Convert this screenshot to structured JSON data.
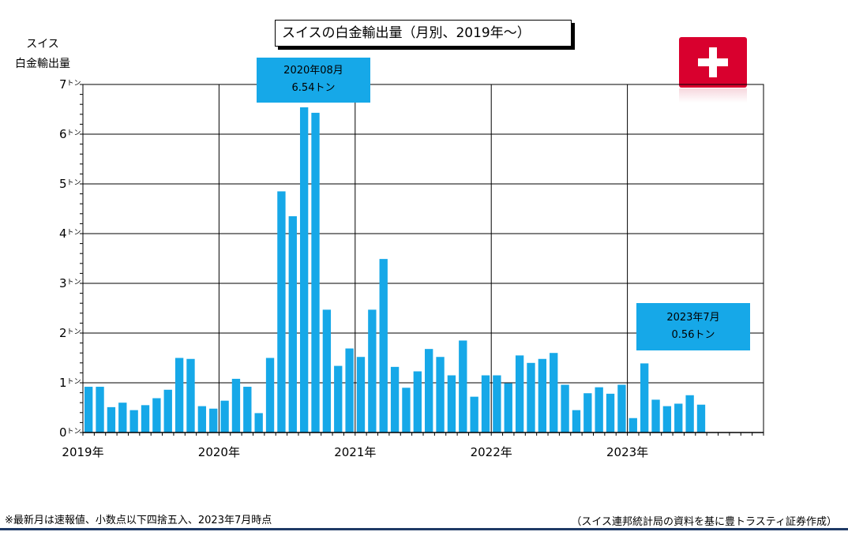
{
  "title": "スイスの白金輸出量（月別、2019年～）",
  "ylabel_lines": [
    "スイス",
    "白金輸出量"
  ],
  "footnote": "※最新月は速報値、小数点以下四捨五入、2023年7月時点",
  "source": "（スイス連邦統計局の資料を基に豊トラスティ証券作成）",
  "colors": {
    "bar": "#16a8e8",
    "flag": "#d9002e",
    "rule": "#1f3a66"
  },
  "icons": {
    "flag": "swiss-flag-icon"
  },
  "callouts": [
    {
      "line1": "2020年08月",
      "line2": "6.54トン"
    },
    {
      "line1": "2023年7月",
      "line2": "0.56トン"
    }
  ],
  "chart_data": {
    "type": "bar",
    "title": "スイスの白金輸出量（月別、2019年～）",
    "ylabel": "スイス 白金輸出量",
    "unit": "トン",
    "ylim": [
      0,
      7
    ],
    "yticks": [
      {
        "value": 0,
        "label": "0"
      },
      {
        "value": 1,
        "label": "1"
      },
      {
        "value": 2,
        "label": "2"
      },
      {
        "value": 3,
        "label": "3"
      },
      {
        "value": 4,
        "label": "4"
      },
      {
        "value": 5,
        "label": "5"
      },
      {
        "value": 6,
        "label": "6"
      },
      {
        "value": 7,
        "label": "7"
      }
    ],
    "ytick_unit": "トン",
    "year_labels": [
      "2019年",
      "2020年",
      "2021年",
      "2022年",
      "2023年"
    ],
    "grid": true,
    "months_total": 60,
    "categories": [
      "2019-01",
      "2019-02",
      "2019-03",
      "2019-04",
      "2019-05",
      "2019-06",
      "2019-07",
      "2019-08",
      "2019-09",
      "2019-10",
      "2019-11",
      "2019-12",
      "2020-01",
      "2020-02",
      "2020-03",
      "2020-04",
      "2020-05",
      "2020-06",
      "2020-07",
      "2020-08",
      "2020-09",
      "2020-10",
      "2020-11",
      "2020-12",
      "2021-01",
      "2021-02",
      "2021-03",
      "2021-04",
      "2021-05",
      "2021-06",
      "2021-07",
      "2021-08",
      "2021-09",
      "2021-10",
      "2021-11",
      "2021-12",
      "2022-01",
      "2022-02",
      "2022-03",
      "2022-04",
      "2022-05",
      "2022-06",
      "2022-07",
      "2022-08",
      "2022-09",
      "2022-10",
      "2022-11",
      "2022-12",
      "2023-01",
      "2023-02",
      "2023-03",
      "2023-04",
      "2023-05",
      "2023-06",
      "2023-07"
    ],
    "values": [
      0.92,
      0.92,
      0.51,
      0.6,
      0.45,
      0.55,
      0.69,
      0.86,
      1.5,
      1.48,
      0.53,
      0.48,
      0.64,
      1.08,
      0.92,
      0.39,
      1.5,
      4.85,
      4.35,
      6.54,
      6.43,
      2.47,
      1.34,
      1.69,
      1.52,
      2.47,
      3.49,
      1.32,
      0.9,
      1.23,
      1.68,
      1.52,
      1.15,
      1.85,
      0.72,
      1.15,
      1.15,
      0.99,
      1.55,
      1.4,
      1.48,
      1.6,
      0.96,
      0.45,
      0.79,
      0.91,
      0.78,
      0.96,
      0.29,
      1.39,
      0.66,
      0.53,
      0.58,
      0.75,
      0.56
    ]
  }
}
